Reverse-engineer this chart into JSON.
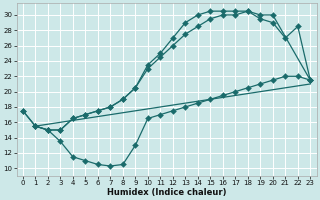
{
  "bg_color": "#cde8e8",
  "grid_color": "#ffffff",
  "line_color": "#1a6b6b",
  "xlabel": "Humidex (Indice chaleur)",
  "xlim": [
    -0.5,
    23.5
  ],
  "ylim": [
    9,
    31.5
  ],
  "yticks": [
    10,
    12,
    14,
    16,
    18,
    20,
    22,
    24,
    26,
    28,
    30
  ],
  "xticks": [
    0,
    1,
    2,
    3,
    4,
    5,
    6,
    7,
    8,
    9,
    10,
    11,
    12,
    13,
    14,
    15,
    16,
    17,
    18,
    19,
    20,
    21,
    22,
    23
  ],
  "line1_x": [
    0,
    1,
    2,
    3,
    4,
    5,
    6,
    7,
    8,
    9,
    10,
    11,
    12,
    13,
    14,
    15,
    16,
    17,
    18,
    19,
    20,
    23
  ],
  "line1_y": [
    17.5,
    15.5,
    15.0,
    15.0,
    16.5,
    17.0,
    17.5,
    18.0,
    19.0,
    20.5,
    23.5,
    25.0,
    27.0,
    29.0,
    30.0,
    30.5,
    30.5,
    30.5,
    30.5,
    30.0,
    30.0,
    21.5
  ],
  "line2_x": [
    0,
    1,
    2,
    3,
    4,
    5,
    6,
    7,
    8,
    9,
    10,
    11,
    12,
    13,
    14,
    15,
    16,
    17,
    18,
    19,
    20,
    21,
    22,
    23
  ],
  "line2_y": [
    17.5,
    15.5,
    15.0,
    15.0,
    16.5,
    17.0,
    17.5,
    18.0,
    19.0,
    20.5,
    23.0,
    24.5,
    26.0,
    27.5,
    28.5,
    29.5,
    30.0,
    30.0,
    30.5,
    29.5,
    29.0,
    27.0,
    28.5,
    21.5
  ],
  "line3_x": [
    1,
    2,
    3,
    4,
    5,
    6,
    7,
    8,
    9,
    10,
    11,
    12,
    13,
    14,
    15,
    16,
    17,
    18,
    19,
    20,
    21,
    22,
    23
  ],
  "line3_y": [
    15.5,
    15.0,
    13.5,
    11.5,
    11.0,
    10.5,
    10.3,
    10.5,
    13.0,
    16.5,
    17.0,
    17.5,
    18.0,
    18.5,
    19.0,
    19.5,
    20.0,
    20.5,
    21.0,
    21.5,
    22.0,
    22.0,
    21.5
  ],
  "line4_x": [
    1,
    23
  ],
  "line4_y": [
    15.5,
    21.0
  ],
  "markersize": 3,
  "linewidth": 0.9,
  "tick_fontsize": 5,
  "xlabel_fontsize": 6,
  "xlabel_fontweight": "bold"
}
